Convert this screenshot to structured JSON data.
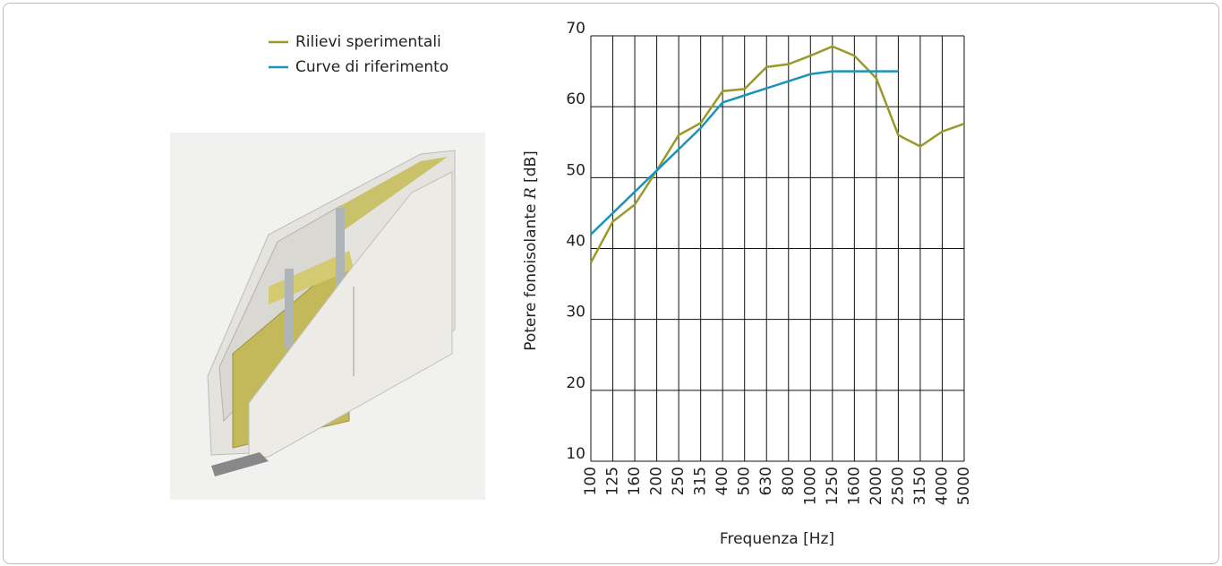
{
  "chart_data": {
    "type": "line",
    "y_label": {
      "text": "Potere fonoisolante ",
      "symbol": "R",
      "unit": " [dB]"
    },
    "x_label": "Frequenza [Hz]",
    "categories": [
      "100",
      "125",
      "160",
      "200",
      "250",
      "315",
      "400",
      "500",
      "630",
      "800",
      "1000",
      "1250",
      "1600",
      "2000",
      "2500",
      "3150",
      "4000",
      "5000"
    ],
    "series": [
      {
        "name": "Rilievi sperimentali",
        "color": "#9a9a2a",
        "values": [
          38,
          43.8,
          46.2,
          51,
          56,
          57.7,
          62.2,
          62.5,
          65.6,
          66,
          67.2,
          68.5,
          67.2,
          64,
          56,
          54.4,
          56.5,
          57.6
        ]
      },
      {
        "name": "Curve di riferimento",
        "color": "#1a95b8",
        "values": [
          42,
          45,
          48,
          51,
          54,
          57,
          60.6,
          61.6,
          62.6,
          63.6,
          64.6,
          65,
          65,
          65,
          65,
          null,
          null,
          null
        ]
      }
    ],
    "ylim": [
      10,
      70
    ],
    "yticks": [
      10,
      20,
      30,
      40,
      50,
      60,
      70
    ],
    "grid": true
  }
}
